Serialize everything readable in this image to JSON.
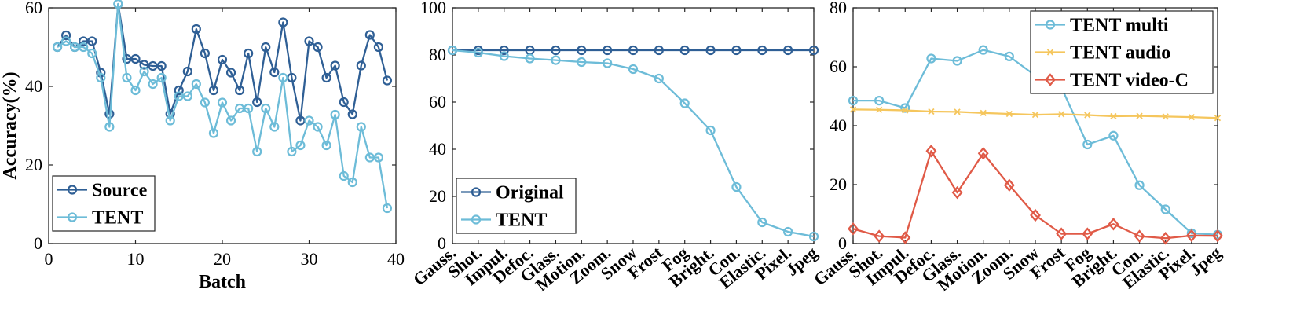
{
  "chart_data": [
    {
      "type": "line",
      "xlabel": "Batch",
      "ylabel": "Accuracy(%)",
      "xlim": [
        0,
        40
      ],
      "ylim": [
        0,
        60
      ],
      "xticks": [
        0,
        10,
        20,
        30,
        40
      ],
      "yticks": [
        0,
        20,
        40,
        60
      ],
      "legend_position": "bottom-left",
      "grid": false,
      "series": [
        {
          "name": "Source",
          "color": "#2f5f95",
          "marker": "circle",
          "x": [
            1,
            2,
            3,
            4,
            5,
            6,
            7,
            8,
            9,
            10,
            11,
            12,
            13,
            14,
            15,
            16,
            17,
            18,
            19,
            20,
            21,
            22,
            23,
            24,
            25,
            26,
            27,
            28,
            29,
            30,
            31,
            32,
            33,
            34,
            35,
            36,
            37,
            38,
            39
          ],
          "values": [
            50,
            53,
            50,
            51.5,
            51.5,
            43.5,
            33,
            61,
            47,
            47,
            45.5,
            45.2,
            45.2,
            33,
            39,
            43.8,
            54.6,
            48.4,
            39,
            46.8,
            43.5,
            39,
            48.4,
            36,
            50,
            43.6,
            56.3,
            42.2,
            31.3,
            51.5,
            50,
            42.2,
            45.3,
            36,
            32.9,
            45.3,
            53.1,
            50,
            41.5
          ]
        },
        {
          "name": "TENT",
          "color": "#6dbcd8",
          "marker": "circle",
          "x": [
            1,
            2,
            3,
            4,
            5,
            6,
            7,
            8,
            9,
            10,
            11,
            12,
            13,
            14,
            15,
            16,
            17,
            18,
            19,
            20,
            21,
            22,
            23,
            24,
            25,
            26,
            27,
            28,
            29,
            30,
            31,
            32,
            33,
            34,
            35,
            36,
            37,
            38,
            39
          ],
          "values": [
            50,
            51.5,
            50,
            50,
            48.4,
            42.2,
            29.7,
            61,
            42.2,
            39,
            43.8,
            40.6,
            42.2,
            31.3,
            37.5,
            37.5,
            40.6,
            35.9,
            28.1,
            35.9,
            31.3,
            34.4,
            34.4,
            23.4,
            34.4,
            29.7,
            42.2,
            23.4,
            25,
            31.3,
            29.7,
            25,
            32.8,
            17.2,
            15.6,
            29.7,
            21.9,
            21.9,
            9
          ]
        }
      ]
    },
    {
      "type": "line",
      "xlabel": "",
      "ylabel": "",
      "ylim": [
        0,
        100
      ],
      "yticks": [
        0,
        20,
        40,
        60,
        80,
        100
      ],
      "categories": [
        "Gauss.",
        "Shot.",
        "Impul.",
        "Defoc.",
        "Glass.",
        "Motion.",
        "Zoom.",
        "Snow",
        "Frost",
        "Fog",
        "Bright.",
        "Con.",
        "Elastic.",
        "Pixel.",
        "Jpeg"
      ],
      "legend_position": "bottom-left",
      "grid": false,
      "series": [
        {
          "name": "Original",
          "color": "#2f5f95",
          "marker": "circle",
          "values": [
            82,
            82,
            82,
            82,
            82,
            82,
            82,
            82,
            82,
            82,
            82,
            82,
            82,
            82,
            82
          ]
        },
        {
          "name": "TENT",
          "color": "#6dbcd8",
          "marker": "circle",
          "values": [
            82,
            81,
            79.5,
            78.5,
            77.8,
            77,
            76.5,
            74,
            70,
            59.5,
            48,
            24,
            9,
            5,
            3
          ]
        }
      ]
    },
    {
      "type": "line",
      "xlabel": "",
      "ylabel": "",
      "ylim": [
        0,
        80
      ],
      "yticks": [
        0,
        20,
        40,
        60,
        80
      ],
      "categories": [
        "Gauss.",
        "Shot.",
        "Impul.",
        "Defoc.",
        "Glass.",
        "Motion.",
        "Zoom.",
        "Snow",
        "Frost",
        "Fog",
        "Bright.",
        "Con.",
        "Elastic.",
        "Pixel.",
        "Jpeg"
      ],
      "legend_position": "top-right",
      "grid": false,
      "series": [
        {
          "name": "TENT multi",
          "color": "#6dbcd8",
          "marker": "circle",
          "values": [
            48.5,
            48.5,
            46,
            62.8,
            62,
            65.7,
            63.5,
            57,
            53,
            33.6,
            36.6,
            19.8,
            11.6,
            3.5,
            3
          ]
        },
        {
          "name": "TENT audio",
          "color": "#f5c65d",
          "marker": "x",
          "values": [
            45.5,
            45.4,
            45.2,
            44.8,
            44.7,
            44.3,
            44,
            43.7,
            43.9,
            43.6,
            43.2,
            43.3,
            43.1,
            42.9,
            42.6
          ]
        },
        {
          "name": "TENT video-C",
          "color": "#e05a47",
          "marker": "diamond",
          "values": [
            5,
            2.5,
            2,
            31.4,
            17.3,
            30.6,
            19.8,
            9.6,
            3.3,
            3.3,
            6.6,
            2.5,
            1.8,
            2.7,
            2.6
          ]
        }
      ]
    }
  ]
}
